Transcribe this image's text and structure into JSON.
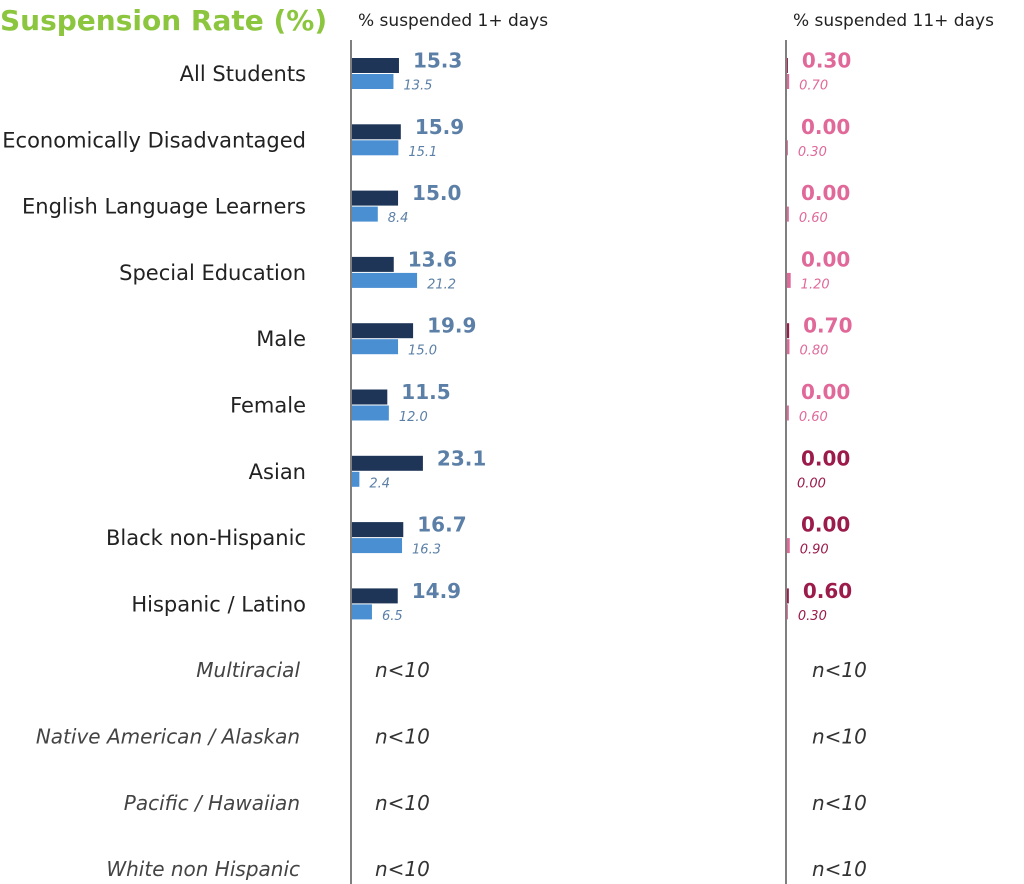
{
  "chart_data": {
    "type": "bar",
    "title": "Suspension Rate (%)",
    "title_color": "#8cc63f",
    "categories": [
      "All Students",
      "Economically Disadvantaged",
      "English Language Learners",
      "Special Education",
      "Male",
      "Female",
      "Asian",
      "Black non-Hispanic",
      "Hispanic / Latino"
    ],
    "xlim": [
      0,
      100
    ],
    "panels": [
      {
        "title": "% suspended 1+ days",
        "series": [
          {
            "color": "#1f3558",
            "label_color": "#5b7fa6",
            "values": [
              15.3,
              15.9,
              15.0,
              13.6,
              19.9,
              11.5,
              23.1,
              16.7,
              14.9
            ],
            "value_labels": [
              "15.3",
              "15.9",
              "15.0",
              "13.6",
              "19.9",
              "11.5",
              "23.1",
              "16.7",
              "14.9"
            ]
          },
          {
            "color": "#4a8fd1",
            "label_color": "#5b7fa6",
            "values": [
              13.5,
              15.1,
              8.4,
              21.2,
              15.0,
              12.0,
              2.4,
              16.3,
              6.5
            ],
            "value_labels": [
              "13.5",
              "15.1",
              "8.4",
              "21.2",
              "15.0",
              "12.0",
              "2.4",
              "16.3",
              "6.5"
            ]
          }
        ]
      },
      {
        "title": "% suspended 11+ days",
        "series": [
          {
            "color": "#9b1b4a",
            "label_colors": [
              "#e0699a",
              "#e0699a",
              "#e0699a",
              "#e0699a",
              "#e0699a",
              "#e0699a",
              "#9b1b4a",
              "#9b1b4a",
              "#9b1b4a"
            ],
            "values": [
              0.3,
              0.0,
              0.0,
              0.0,
              0.7,
              0.0,
              0.0,
              0.0,
              0.6
            ],
            "value_labels": [
              "0.30",
              "0.00",
              "0.00",
              "0.00",
              "0.70",
              "0.00",
              "0.00",
              "0.00",
              "0.60"
            ]
          },
          {
            "color": "#e0699a",
            "label_colors": [
              "#e0699a",
              "#e0699a",
              "#e0699a",
              "#e0699a",
              "#e0699a",
              "#e0699a",
              "#9b1b4a",
              "#9b1b4a",
              "#9b1b4a"
            ],
            "values": [
              0.7,
              0.3,
              0.6,
              1.2,
              0.8,
              0.6,
              0.0,
              0.9,
              0.3
            ],
            "value_labels": [
              "0.70",
              "0.30",
              "0.60",
              "1.20",
              "0.80",
              "0.60",
              "0.00",
              "0.90",
              "0.30"
            ]
          }
        ]
      }
    ],
    "suppressed": {
      "categories": [
        "Multiracial",
        "Native American / Alaskan",
        "Pacific / Hawaiian",
        "White non Hispanic"
      ],
      "label": "n<10"
    }
  }
}
